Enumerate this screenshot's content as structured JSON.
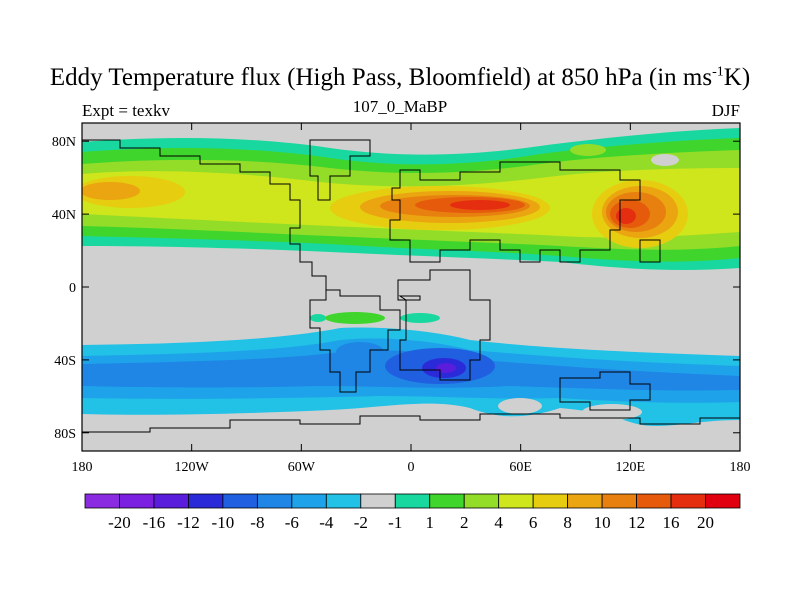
{
  "title": {
    "main_prefix": "Eddy Temperature flux (High Pass, Bloomfield) at 850 hPa (in ms",
    "main_sup": "-1",
    "main_suffix": "K)",
    "subtitle": "107_0_MaBP",
    "left_label": "Expt = texkv",
    "right_label": "DJF"
  },
  "colors": {
    "land_mask": "#d0d0d0",
    "coast": "#000000"
  },
  "map": {
    "lon_range": [
      -180,
      180
    ],
    "lat_range": [
      -90,
      90
    ],
    "x_ticks": [
      "180",
      "120W",
      "60W",
      "0",
      "60E",
      "120E",
      "180"
    ],
    "y_ticks": [
      "80N",
      "40N",
      "0",
      "40S",
      "80S"
    ]
  },
  "colorbar": {
    "colors": [
      "#8a2be2",
      "#7b1fe0",
      "#5a1ddc",
      "#2a2ad8",
      "#1f5fe0",
      "#1f86e6",
      "#1ea3ea",
      "#22c1e6",
      "#d0d0d0",
      "#18d8a0",
      "#3fd52c",
      "#93dd28",
      "#cfe51c",
      "#e7cd10",
      "#eaa510",
      "#e7800e",
      "#e65a0c",
      "#e52e10",
      "#e00010"
    ],
    "labels": [
      "-20",
      "-16",
      "-12",
      "-10",
      "-8",
      "-6",
      "-4",
      "-2",
      "-1",
      "1",
      "2",
      "4",
      "6",
      "8",
      "10",
      "12",
      "16",
      "20"
    ]
  }
}
